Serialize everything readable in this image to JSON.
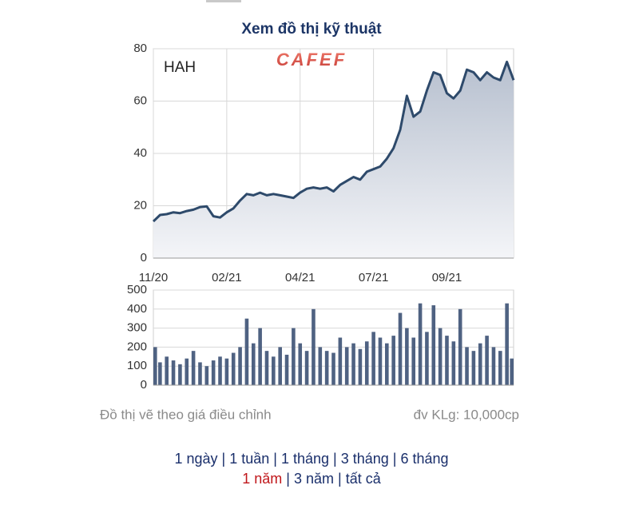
{
  "title": "Xem đồ thị kỹ thuật",
  "logo": "CAFEF",
  "notes": {
    "left": "Đồ thị vẽ theo giá điều chỉnh",
    "right": "đv KLg: 10,000cp"
  },
  "periods": [
    "1 ngày",
    "1 tuần",
    "1 tháng",
    "3 tháng",
    "6 tháng",
    "1 năm",
    "3 năm",
    "tất cả"
  ],
  "chart_data": [
    {
      "type": "area",
      "label": "HAH",
      "color": "#2e4a6b",
      "categories": [
        "11/20",
        null,
        null,
        null,
        null,
        null,
        null,
        null,
        null,
        null,
        null,
        "02/21",
        null,
        null,
        null,
        null,
        null,
        null,
        null,
        null,
        null,
        null,
        "04/21",
        null,
        null,
        null,
        null,
        null,
        null,
        null,
        null,
        null,
        null,
        "07/21",
        null,
        null,
        null,
        null,
        null,
        null,
        null,
        null,
        null,
        null,
        "09/21",
        null,
        null,
        null,
        null,
        null,
        null,
        null,
        null,
        null,
        null
      ],
      "values": [
        14,
        16.5,
        16.8,
        17.5,
        17.2,
        18,
        18.5,
        19.5,
        19.8,
        16,
        15.5,
        17.5,
        19,
        22,
        24.5,
        24,
        25,
        24,
        24.5,
        24,
        23.5,
        23,
        25,
        26.5,
        27,
        26.5,
        27,
        25.5,
        28,
        29.5,
        31,
        30,
        33,
        34,
        35,
        38,
        42,
        49,
        62,
        54,
        56,
        64,
        71,
        70,
        63,
        61,
        64,
        72,
        71,
        68,
        71,
        69,
        68,
        75,
        68
      ],
      "ylim": [
        0,
        80
      ],
      "yticks": [
        0,
        20,
        40,
        60,
        80
      ],
      "grid": true
    },
    {
      "type": "bar",
      "color": "#4f6282",
      "values": [
        200,
        120,
        150,
        130,
        110,
        140,
        180,
        120,
        100,
        130,
        150,
        140,
        170,
        200,
        350,
        220,
        300,
        180,
        150,
        200,
        160,
        300,
        220,
        180,
        400,
        200,
        180,
        170,
        250,
        200,
        220,
        190,
        230,
        280,
        250,
        220,
        260,
        380,
        300,
        250,
        430,
        280,
        420,
        300,
        260,
        230,
        400,
        200,
        180,
        220,
        260,
        200,
        180,
        430,
        140
      ],
      "ylim": [
        0,
        500
      ],
      "yticks": [
        0,
        100,
        200,
        300,
        400,
        500
      ],
      "grid": true
    }
  ]
}
